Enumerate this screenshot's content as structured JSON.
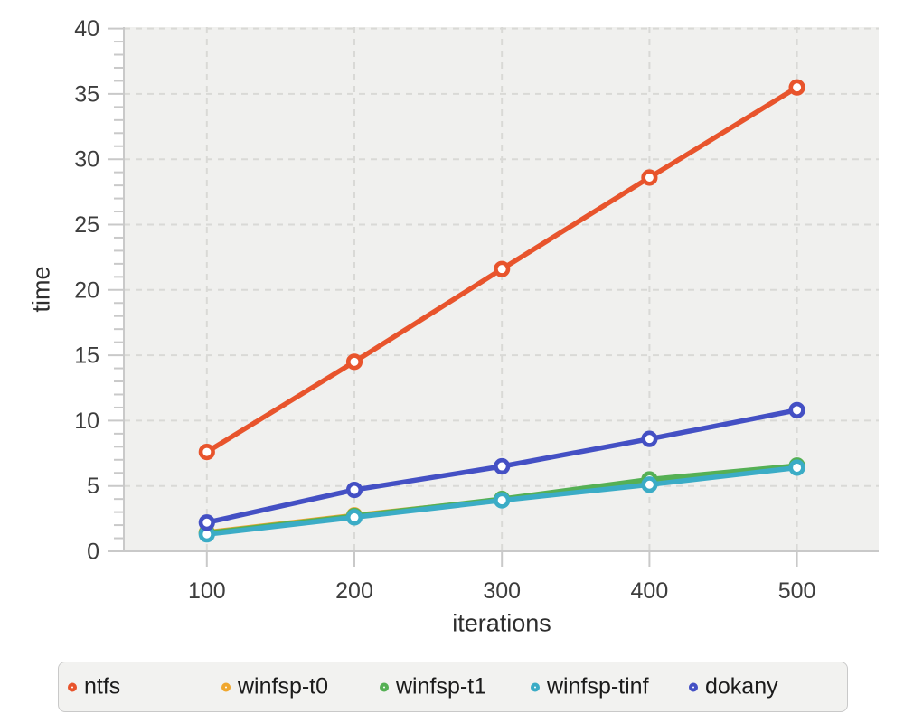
{
  "chart_data": {
    "type": "line",
    "title": "",
    "xlabel": "iterations",
    "ylabel": "time",
    "x": [
      100,
      200,
      300,
      400,
      500
    ],
    "xticks": [
      100,
      200,
      300,
      400,
      500
    ],
    "yticks": [
      0,
      5,
      10,
      15,
      20,
      25,
      30,
      35,
      40
    ],
    "y_minor_tick_step": 1,
    "xlim": [
      44,
      556
    ],
    "ylim": [
      0,
      40.1
    ],
    "grid": "dashed gridlines at major ticks, both axes",
    "legend_position": "bottom",
    "marker": "open-circle",
    "series": [
      {
        "name": "ntfs",
        "color": "#E8542C",
        "values": [
          7.6,
          14.5,
          21.6,
          28.6,
          35.5
        ]
      },
      {
        "name": "winfsp-t0",
        "color": "#F0A72E",
        "values": [
          1.45,
          2.75,
          3.95,
          5.15,
          6.45
        ]
      },
      {
        "name": "winfsp-t1",
        "color": "#55B054",
        "values": [
          1.4,
          2.7,
          4.0,
          5.5,
          6.55
        ]
      },
      {
        "name": "winfsp-tinf",
        "color": "#3BACC6",
        "values": [
          1.3,
          2.6,
          3.9,
          5.1,
          6.4
        ]
      },
      {
        "name": "dokany",
        "color": "#4450C4",
        "values": [
          2.2,
          4.7,
          6.5,
          8.6,
          10.8
        ]
      }
    ]
  },
  "colors": {
    "page_bg": "#ffffff",
    "plot_bg": "#f0f0ee",
    "grid": "#d9d9d6",
    "axis": "#c9c9c9",
    "tick_label": "#3d3d3d",
    "axis_title": "#2e2e2e",
    "legend_bg": "#f2f2f0",
    "legend_border": "#c9c9c9",
    "legend_text": "#1b1b1b"
  }
}
